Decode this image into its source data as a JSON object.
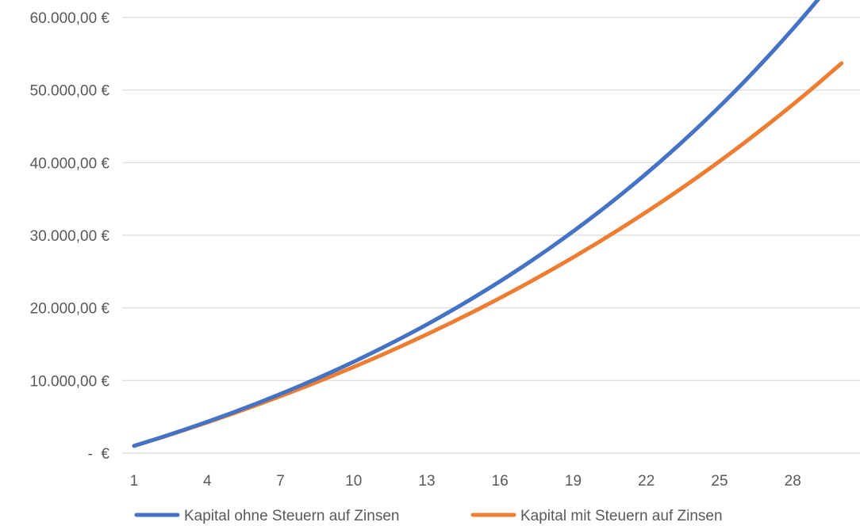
{
  "chart_data": {
    "type": "line",
    "x": [
      1,
      2,
      3,
      4,
      5,
      6,
      7,
      8,
      9,
      10,
      11,
      12,
      13,
      14,
      15,
      16,
      17,
      18,
      19,
      20,
      21,
      22,
      23,
      24,
      25,
      26,
      27,
      28,
      29,
      30
    ],
    "x_tick_labels": [
      "1",
      "4",
      "7",
      "10",
      "13",
      "16",
      "19",
      "22",
      "25",
      "28"
    ],
    "x_tick_values": [
      1,
      4,
      7,
      10,
      13,
      16,
      19,
      22,
      25,
      28
    ],
    "y_tick_labels": [
      "-  €",
      "10.000,00 €",
      "20.000,00 €",
      "30.000,00 €",
      "40.000,00 €",
      "50.000,00 €",
      "60.000,00 €"
    ],
    "y_tick_values": [
      0,
      10000,
      20000,
      30000,
      40000,
      50000,
      60000
    ],
    "ylim": [
      0,
      60000
    ],
    "xlim": [
      1,
      30
    ],
    "grid": "horizontal",
    "legend_position": "bottom",
    "series": [
      {
        "name": "Kapital ohne Steuern auf Zinsen",
        "color": "#4472C4",
        "values": [
          1000,
          2050,
          3153,
          4310,
          5526,
          6802,
          8142,
          9549,
          11027,
          12578,
          14207,
          15917,
          17713,
          19599,
          21579,
          23657,
          25840,
          28132,
          30539,
          33066,
          35719,
          38505,
          41430,
          44502,
          47727,
          51113,
          54669,
          58403,
          62323,
          66439
        ]
      },
      {
        "name": "Kapital mit Steuern auf Zinsen",
        "color": "#ED7D31",
        "values": [
          1000,
          2037,
          3113,
          4229,
          5386,
          6587,
          7832,
          9124,
          10465,
          11855,
          13297,
          14793,
          16346,
          17956,
          19627,
          21360,
          23159,
          25024,
          26960,
          28968,
          31051,
          33213,
          35455,
          37782,
          40195,
          42700,
          45298,
          47993,
          50789,
          53691
        ]
      }
    ]
  }
}
